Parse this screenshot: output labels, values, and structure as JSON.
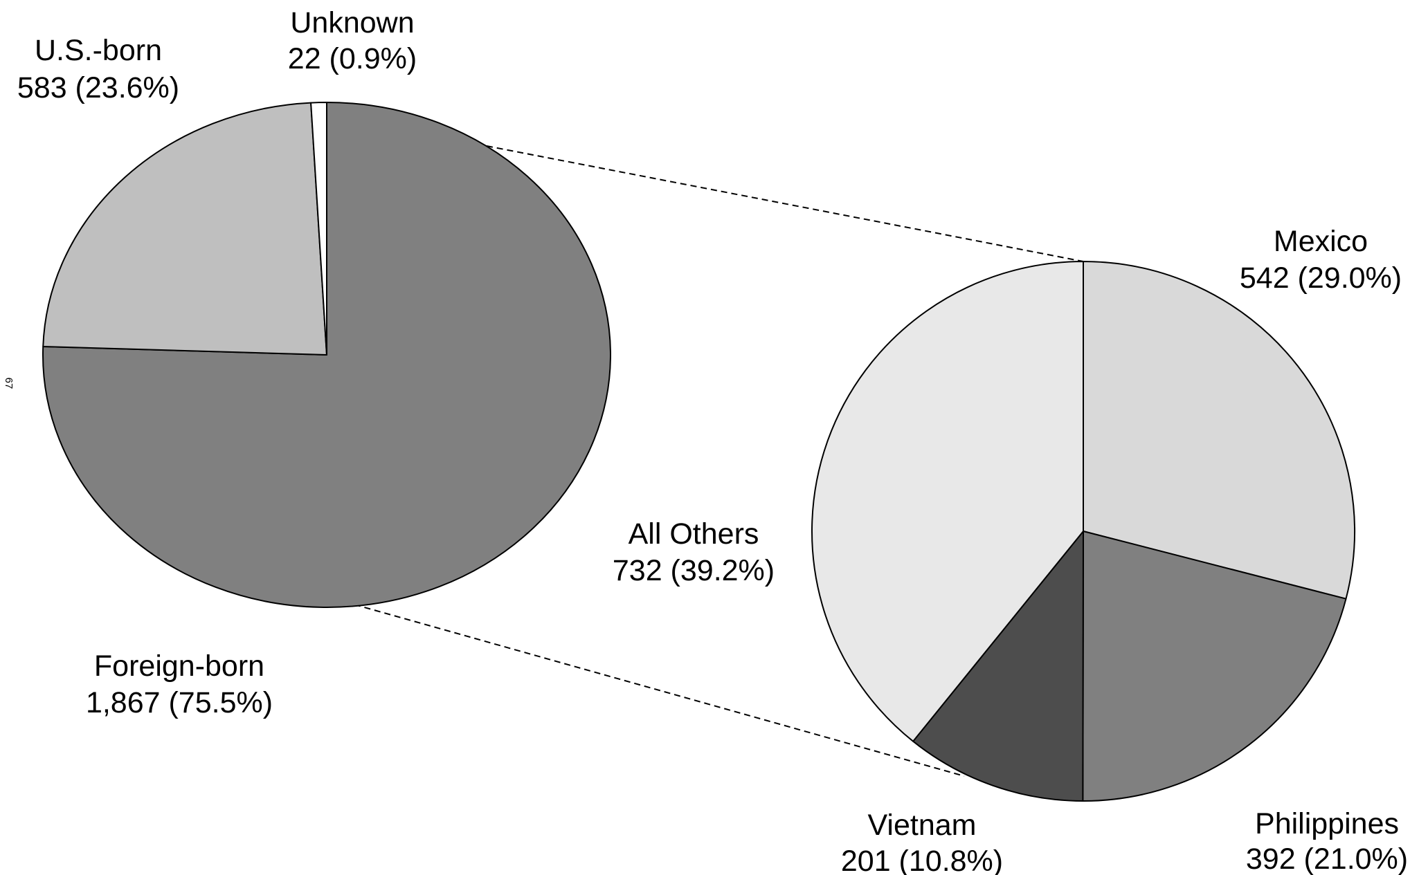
{
  "page_number": "67",
  "chart_data": [
    {
      "type": "pie",
      "slices": [
        {
          "name": "Foreign-born",
          "value_text": "1,867 (75.5%)",
          "value": 1867,
          "percent": 75.5,
          "color": "#808080"
        },
        {
          "name": "U.S.-born",
          "value_text": "583 (23.6%)",
          "value": 583,
          "percent": 23.6,
          "color": "#bfbfbf"
        },
        {
          "name": "Unknown",
          "value_text": "22 (0.9%)",
          "value": 22,
          "percent": 0.9,
          "color": "#ffffff"
        }
      ]
    },
    {
      "type": "pie",
      "slices": [
        {
          "name": "Mexico",
          "value_text": "542 (29.0%)",
          "value": 542,
          "percent": 29.0,
          "color": "#d9d9d9"
        },
        {
          "name": "Philippines",
          "value_text": "392 (21.0%)",
          "value": 392,
          "percent": 21.0,
          "color": "#808080"
        },
        {
          "name": "Vietnam",
          "value_text": "201 (10.8%)",
          "value": 201,
          "percent": 10.8,
          "color": "#4d4d4d"
        },
        {
          "name": "All Others",
          "value_text": "732 (39.2%)",
          "value": 732,
          "percent": 39.2,
          "color": "#e8e8e8"
        }
      ]
    }
  ]
}
